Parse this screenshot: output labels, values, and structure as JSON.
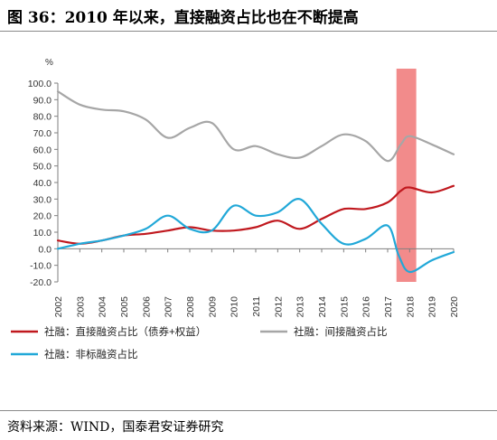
{
  "title": "图 36：2010 年以来，直接融资占比也在不断提高",
  "source": "资料来源：WIND，国泰君安证券研究",
  "chart_data": {
    "type": "line",
    "unit_label": "%",
    "ylim": [
      -20,
      100
    ],
    "yticks": [
      "100.0",
      "90.0",
      "80.0",
      "70.0",
      "60.0",
      "50.0",
      "40.0",
      "30.0",
      "20.0",
      "10.0",
      "0.0",
      "-10.0",
      "-20.0"
    ],
    "ytick_values": [
      100,
      90,
      80,
      70,
      60,
      50,
      40,
      30,
      20,
      10,
      0,
      -10,
      -20
    ],
    "categories": [
      "2002",
      "2003",
      "2004",
      "2005",
      "2006",
      "2007",
      "2008",
      "2009",
      "2010",
      "2011",
      "2012",
      "2013",
      "2014",
      "2015",
      "2016",
      "2017",
      "2018",
      "2019",
      "2020"
    ],
    "highlight": {
      "from": 2017.4,
      "to": 2018.3,
      "color": "#f28b8b"
    },
    "series": [
      {
        "name": "社融：直接融资占比（债券+权益）",
        "color": "#c0181e",
        "points": [
          [
            2002,
            5
          ],
          [
            2003,
            3
          ],
          [
            2004,
            5
          ],
          [
            2005,
            8
          ],
          [
            2006,
            9
          ],
          [
            2007,
            11
          ],
          [
            2008,
            13
          ],
          [
            2009,
            11
          ],
          [
            2010,
            11
          ],
          [
            2011,
            13
          ],
          [
            2012,
            17
          ],
          [
            2013,
            12
          ],
          [
            2014,
            18
          ],
          [
            2015,
            24
          ],
          [
            2016,
            24
          ],
          [
            2017,
            28
          ],
          [
            2017.6,
            35
          ],
          [
            2018,
            37
          ],
          [
            2019,
            34
          ],
          [
            2020,
            38
          ]
        ]
      },
      {
        "name": "社融：间接融资占比",
        "color": "#a6a6a6",
        "points": [
          [
            2002,
            95
          ],
          [
            2003,
            87
          ],
          [
            2004,
            84
          ],
          [
            2005,
            83
          ],
          [
            2006,
            78
          ],
          [
            2007,
            67
          ],
          [
            2008,
            73
          ],
          [
            2009,
            76
          ],
          [
            2010,
            60
          ],
          [
            2011,
            62
          ],
          [
            2012,
            57
          ],
          [
            2013,
            55
          ],
          [
            2014,
            62
          ],
          [
            2015,
            69
          ],
          [
            2016,
            65
          ],
          [
            2017,
            53
          ],
          [
            2017.6,
            63
          ],
          [
            2018,
            68
          ],
          [
            2019,
            63
          ],
          [
            2020,
            57
          ]
        ]
      },
      {
        "name": "社融：非标融资占比",
        "color": "#21a8d8",
        "points": [
          [
            2002,
            0
          ],
          [
            2003,
            3
          ],
          [
            2004,
            5
          ],
          [
            2005,
            8
          ],
          [
            2006,
            12
          ],
          [
            2007,
            20
          ],
          [
            2008,
            12
          ],
          [
            2009,
            11
          ],
          [
            2010,
            26
          ],
          [
            2011,
            20
          ],
          [
            2012,
            22
          ],
          [
            2013,
            30
          ],
          [
            2014,
            15
          ],
          [
            2015,
            3
          ],
          [
            2016,
            6
          ],
          [
            2017,
            14
          ],
          [
            2017.5,
            -4
          ],
          [
            2018,
            -14
          ],
          [
            2019,
            -7
          ],
          [
            2020,
            -2
          ]
        ]
      }
    ],
    "legend": "bottom"
  }
}
